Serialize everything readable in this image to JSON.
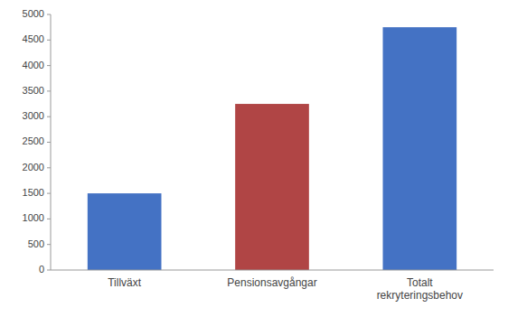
{
  "chart_data": {
    "type": "bar",
    "categories": [
      "Tillväxt",
      "Pensionsavgångar",
      "Totalt\nrekryteringsbehov"
    ],
    "values": [
      1500,
      3250,
      4750
    ],
    "colors": [
      "#4472c4",
      "#b04545",
      "#4472c4"
    ],
    "ylim": [
      0,
      5000
    ],
    "yticks": [
      0,
      500,
      1000,
      1500,
      2000,
      2500,
      3000,
      3500,
      4000,
      4500,
      5000
    ],
    "grid": false
  }
}
